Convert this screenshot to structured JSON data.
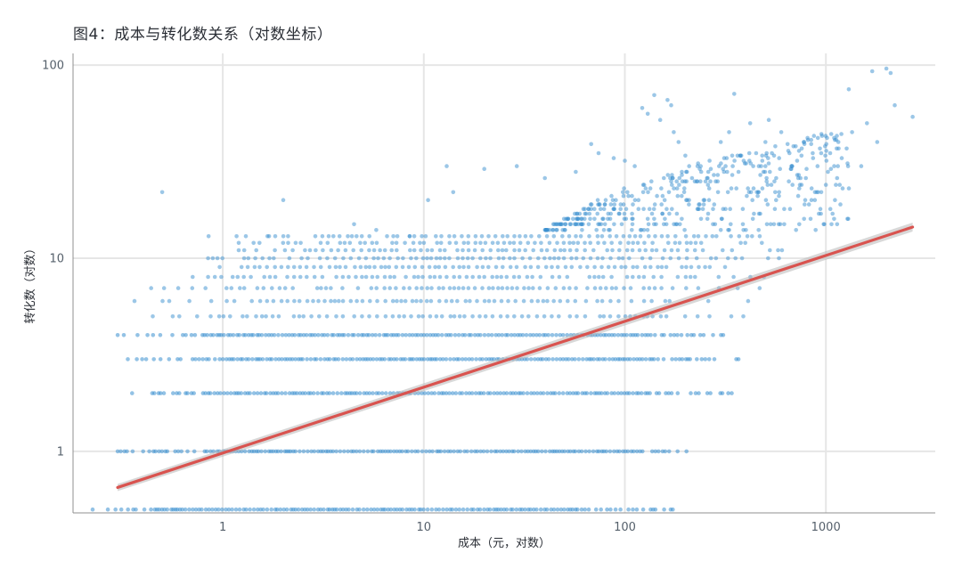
{
  "chart_data": {
    "type": "scatter",
    "title": "图4：成本与转化数关系（对数坐标）",
    "xlabel": "成本（元，对数）",
    "ylabel": "转化数（对数）",
    "x_scale": "log",
    "y_scale": "log",
    "xlim": [
      0.18,
      3500
    ],
    "ylim": [
      0.48,
      115
    ],
    "x_ticks": [
      1,
      10,
      100,
      1000
    ],
    "x_tick_labels": [
      "1",
      "10",
      "100",
      "1000"
    ],
    "y_ticks": [
      1,
      10,
      100
    ],
    "y_tick_labels": [
      "1",
      "10",
      "100"
    ],
    "grid": true,
    "point_color": "#3a8fd0",
    "trend_color": "#d9534f",
    "band_color": "#b8b8b8",
    "bands": [
      {
        "y": 0.5,
        "x_min": 0.2,
        "x_max": 185
      },
      {
        "y": 1,
        "x_min": 0.3,
        "x_max": 210
      },
      {
        "y": 2,
        "x_min": 0.33,
        "x_max": 360
      },
      {
        "y": 3,
        "x_min": 0.33,
        "x_max": 370
      },
      {
        "y": 4,
        "x_min": 0.3,
        "x_max": 380
      },
      {
        "y": 5,
        "x_min": 0.36,
        "x_max": 450
      },
      {
        "y": 6,
        "x_min": 0.33,
        "x_max": 440
      },
      {
        "y": 7,
        "x_min": 0.4,
        "x_max": 500
      },
      {
        "y": 8,
        "x_min": 0.5,
        "x_max": 540
      },
      {
        "y": 9,
        "x_min": 0.45,
        "x_max": 600
      },
      {
        "y": 10,
        "x_min": 0.45,
        "x_max": 620
      },
      {
        "y": 11,
        "x_min": 1.2,
        "x_max": 650
      },
      {
        "y": 12,
        "x_min": 1.2,
        "x_max": 600
      },
      {
        "y": 13,
        "x_min": 0.9,
        "x_max": 680
      }
    ],
    "sparse_points": [
      {
        "x": 0.5,
        "y": 22
      },
      {
        "x": 2.0,
        "y": 20
      },
      {
        "x": 0.85,
        "y": 13
      },
      {
        "x": 1.7,
        "y": 13
      },
      {
        "x": 1.2,
        "y": 12
      },
      {
        "x": 4.5,
        "y": 15
      },
      {
        "x": 5.8,
        "y": 14
      },
      {
        "x": 8.5,
        "y": 13
      },
      {
        "x": 10.5,
        "y": 20
      },
      {
        "x": 13,
        "y": 30
      },
      {
        "x": 14,
        "y": 22
      },
      {
        "x": 20,
        "y": 29
      },
      {
        "x": 29,
        "y": 30
      },
      {
        "x": 40,
        "y": 26
      },
      {
        "x": 57,
        "y": 28
      },
      {
        "x": 68,
        "y": 39
      },
      {
        "x": 74,
        "y": 35
      },
      {
        "x": 88,
        "y": 33
      },
      {
        "x": 100,
        "y": 32
      },
      {
        "x": 112,
        "y": 30
      },
      {
        "x": 122,
        "y": 60
      },
      {
        "x": 140,
        "y": 70
      },
      {
        "x": 150,
        "y": 52
      },
      {
        "x": 163,
        "y": 66
      },
      {
        "x": 170,
        "y": 62
      },
      {
        "x": 130,
        "y": 56
      },
      {
        "x": 175,
        "y": 45
      },
      {
        "x": 185,
        "y": 40
      },
      {
        "x": 200,
        "y": 34
      },
      {
        "x": 230,
        "y": 30
      },
      {
        "x": 260,
        "y": 28
      },
      {
        "x": 300,
        "y": 40
      },
      {
        "x": 330,
        "y": 45
      },
      {
        "x": 350,
        "y": 71
      },
      {
        "x": 390,
        "y": 32
      },
      {
        "x": 420,
        "y": 50
      },
      {
        "x": 450,
        "y": 35
      },
      {
        "x": 500,
        "y": 40
      },
      {
        "x": 520,
        "y": 52
      },
      {
        "x": 560,
        "y": 38
      },
      {
        "x": 600,
        "y": 45
      },
      {
        "x": 650,
        "y": 36
      },
      {
        "x": 680,
        "y": 30
      },
      {
        "x": 720,
        "y": 27
      },
      {
        "x": 780,
        "y": 40
      },
      {
        "x": 860,
        "y": 35
      },
      {
        "x": 900,
        "y": 22
      },
      {
        "x": 950,
        "y": 44
      },
      {
        "x": 1000,
        "y": 24
      },
      {
        "x": 1050,
        "y": 35
      },
      {
        "x": 1100,
        "y": 30
      },
      {
        "x": 1300,
        "y": 75
      },
      {
        "x": 1350,
        "y": 45
      },
      {
        "x": 1500,
        "y": 30
      },
      {
        "x": 1600,
        "y": 50
      },
      {
        "x": 1700,
        "y": 93
      },
      {
        "x": 1800,
        "y": 40
      },
      {
        "x": 2000,
        "y": 96
      },
      {
        "x": 2100,
        "y": 91
      },
      {
        "x": 2200,
        "y": 62
      },
      {
        "x": 2700,
        "y": 54
      },
      {
        "x": 1100,
        "y": 42
      },
      {
        "x": 300,
        "y": 14
      },
      {
        "x": 480,
        "y": 12
      }
    ],
    "trend_line": {
      "x": [
        0.3,
        2700
      ],
      "y": [
        0.65,
        14.5
      ]
    }
  }
}
